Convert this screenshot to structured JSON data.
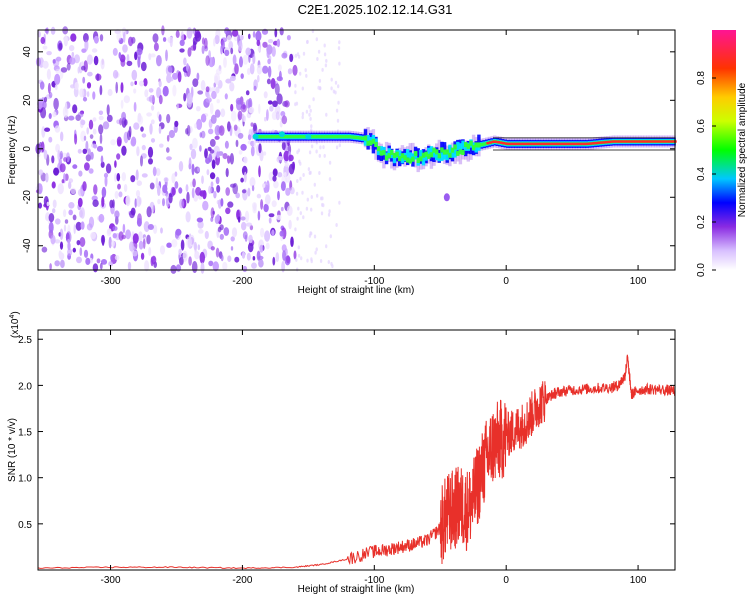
{
  "title": "C2E1.2025.102.12.14.G31",
  "colors": {
    "snr_line": "#e8302a",
    "colormap": [
      "#ffffff",
      "#c9a3ff",
      "#8a2be2",
      "#0000ff",
      "#00ffff",
      "#00ff00",
      "#ffff00",
      "#ff8000",
      "#ff0000",
      "#ff1493"
    ]
  },
  "chart_data": [
    {
      "type": "heatmap",
      "name": "spectrogram",
      "xlabel": "Height of straight line (km)",
      "ylabel": "Frequency (Hz)",
      "xlim": [
        -355,
        128
      ],
      "ylim": [
        -50,
        49
      ],
      "xticks": [
        -300,
        -200,
        -100,
        0,
        100
      ],
      "yticks": [
        -40,
        -20,
        0,
        20,
        40
      ],
      "colorbar": {
        "label": "Normalized spectral amplitude",
        "range": [
          0,
          1
        ],
        "ticks": [
          "0.0",
          "0.2",
          "0.4",
          "0.6",
          "0.8"
        ]
      },
      "noise_region_x": [
        -355,
        -160
      ],
      "signal_ridge": [
        {
          "x": -190,
          "y": 5
        },
        {
          "x": -160,
          "y": 5
        },
        {
          "x": -140,
          "y": 5
        },
        {
          "x": -120,
          "y": 5
        },
        {
          "x": -105,
          "y": 4
        },
        {
          "x": -95,
          "y": -2
        },
        {
          "x": -85,
          "y": -4
        },
        {
          "x": -75,
          "y": -3
        },
        {
          "x": -65,
          "y": -4
        },
        {
          "x": -55,
          "y": -2
        },
        {
          "x": -40,
          "y": -1
        },
        {
          "x": -25,
          "y": 1
        },
        {
          "x": -10,
          "y": 3
        },
        {
          "x": 0,
          "y": 2
        },
        {
          "x": 30,
          "y": 2
        },
        {
          "x": 60,
          "y": 2
        },
        {
          "x": 80,
          "y": 3
        },
        {
          "x": 100,
          "y": 3
        },
        {
          "x": 128,
          "y": 3
        }
      ],
      "grid": false
    },
    {
      "type": "line",
      "name": "snr",
      "xlabel": "Height of straight line (km)",
      "ylabel": "SNR (10 * v/v)",
      "y_multiplier": "(x10",
      "y_multiplier_exp": "4",
      "xlim": [
        -355,
        128
      ],
      "ylim": [
        0,
        2.6
      ],
      "xticks": [
        -300,
        -200,
        -100,
        0,
        100
      ],
      "yticks": [
        "0.5",
        "1.0",
        "1.5",
        "2.0",
        "2.5"
      ],
      "x": [
        -355,
        -300,
        -250,
        -200,
        -160,
        -140,
        -120,
        -100,
        -90,
        -80,
        -70,
        -60,
        -50,
        -45,
        -40,
        -35,
        -30,
        -25,
        -20,
        -15,
        -10,
        -5,
        0,
        5,
        10,
        15,
        20,
        25,
        30,
        35,
        40,
        50,
        60,
        70,
        80,
        85,
        90,
        92,
        95,
        100,
        110,
        120,
        128
      ],
      "values": [
        0.02,
        0.03,
        0.03,
        0.02,
        0.03,
        0.06,
        0.12,
        0.2,
        0.22,
        0.25,
        0.28,
        0.32,
        0.45,
        0.6,
        0.65,
        0.7,
        0.65,
        0.75,
        1.0,
        1.2,
        1.35,
        1.4,
        1.45,
        1.5,
        1.55,
        1.6,
        1.7,
        1.8,
        1.85,
        1.9,
        1.93,
        1.95,
        1.96,
        1.97,
        1.98,
        2.0,
        2.1,
        2.3,
        1.9,
        1.95,
        1.96,
        1.95,
        1.94
      ],
      "grid": false
    }
  ]
}
